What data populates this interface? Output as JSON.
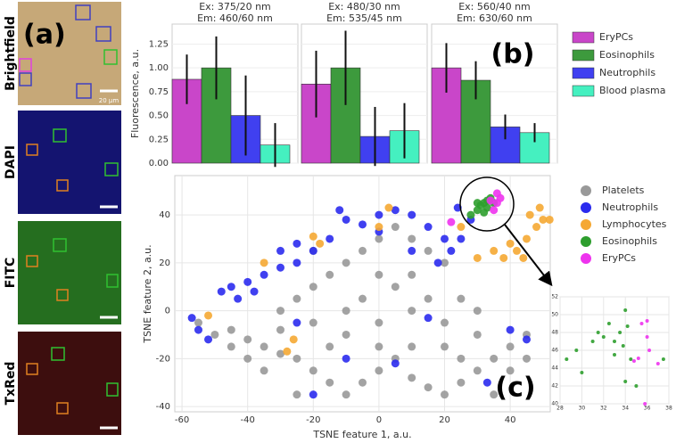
{
  "figure": {
    "panel_a": "(a)",
    "image_labels": [
      "Brightfield",
      "DAPI",
      "FITC",
      "TxRed"
    ],
    "scale_bar": "20 µm"
  },
  "chart_data": [
    {
      "type": "bar",
      "label": "(b)",
      "ylabel": "Fluorescence, a.u.",
      "ylim": [
        0,
        1.46
      ],
      "yticks": [
        {
          "value": 0,
          "label": "0.00"
        },
        {
          "value": 0.25,
          "label": "0.25"
        },
        {
          "value": 0.5,
          "label": "0.50"
        },
        {
          "value": 0.75,
          "label": "0.75"
        },
        {
          "value": 1,
          "label": "1.00"
        },
        {
          "value": 1.25,
          "label": "1.25"
        }
      ],
      "facets": [
        {
          "excitation": "Ex: 375/20 nm",
          "emission": "Em: 460/60 nm"
        },
        {
          "excitation": "Ex: 480/30 nm",
          "emission": "Em: 535/45 nm"
        },
        {
          "excitation": "Ex: 560/40 nm",
          "emission": "Em: 630/60 nm"
        }
      ],
      "series": [
        {
          "name": "EryPCs",
          "color": "#c946c9",
          "values": [
            0.88,
            0.83,
            1.0
          ],
          "errors": [
            0.26,
            0.35,
            0.26
          ]
        },
        {
          "name": "Eosinophils",
          "color": "#3d9a3d",
          "values": [
            1.0,
            1.0,
            0.87
          ],
          "errors": [
            0.33,
            0.39,
            0.2
          ]
        },
        {
          "name": "Neutrophils",
          "color": "#4040f0",
          "values": [
            0.5,
            0.28,
            0.38
          ],
          "errors": [
            0.42,
            0.31,
            0.13
          ]
        },
        {
          "name": "Blood plasma",
          "color": "#45f0c0",
          "values": [
            0.19,
            0.34,
            0.32
          ],
          "errors": [
            0.23,
            0.29,
            0.1
          ]
        }
      ]
    },
    {
      "type": "scatter",
      "label": "(c)",
      "xlabel": "TSNE feature 1, a.u.",
      "ylabel": "TSNE feature 2, a.u.",
      "xlim": [
        -62.2,
        52.2
      ],
      "ylim": [
        -42.2,
        56.4
      ],
      "xticks": [
        -60,
        -40,
        -20,
        0,
        20,
        40
      ],
      "yticks": [
        -40,
        -20,
        0,
        20,
        40
      ],
      "grid": true,
      "series": [
        {
          "name": "Platelets",
          "color": "#999999",
          "x": [
            -55,
            -50,
            -45,
            -40,
            -35,
            -30,
            -25,
            -20,
            -15,
            -10,
            -5,
            0,
            5,
            10,
            15,
            20,
            25,
            30,
            35,
            40,
            45,
            -30,
            -25,
            -20,
            -15,
            -10,
            -5,
            0,
            5,
            10,
            15,
            20,
            -20,
            -10,
            0,
            10,
            20,
            30,
            -5,
            5,
            15,
            25,
            -35,
            -40,
            -15,
            0,
            10,
            20,
            35,
            -25,
            -10,
            0,
            -20,
            10,
            25,
            40,
            -45,
            -30,
            30,
            45
          ],
          "values": [
            -5,
            -10,
            -8,
            -12,
            -15,
            -18,
            -20,
            -25,
            -30,
            -35,
            -30,
            -25,
            -20,
            -28,
            -32,
            -35,
            -30,
            -25,
            -20,
            -15,
            -10,
            0,
            5,
            10,
            15,
            20,
            25,
            30,
            35,
            30,
            25,
            20,
            -5,
            -10,
            -5,
            0,
            -5,
            -10,
            5,
            10,
            5,
            5,
            -25,
            -20,
            -15,
            -15,
            -15,
            -15,
            -35,
            -35,
            0,
            15,
            25,
            15,
            -20,
            -25,
            -15,
            -8,
            0,
            -20
          ]
        },
        {
          "name": "Neutrophils",
          "color": "#2b2bee",
          "x": [
            -57,
            -55,
            -52,
            -48,
            -45,
            -40,
            -35,
            -30,
            -25,
            -20,
            -15,
            -10,
            -5,
            0,
            5,
            10,
            15,
            20,
            22,
            25,
            28,
            24,
            -30,
            -38,
            -25,
            -20,
            -10,
            5,
            15,
            40,
            45,
            33,
            -25,
            10,
            18,
            -43,
            0,
            -12
          ],
          "values": [
            -3,
            -8,
            -12,
            8,
            10,
            12,
            15,
            18,
            20,
            25,
            30,
            38,
            36,
            40,
            42,
            40,
            35,
            30,
            25,
            30,
            38,
            43,
            25,
            8,
            -5,
            -35,
            -20,
            -22,
            -3,
            -8,
            -12,
            -30,
            28,
            25,
            20,
            5,
            33,
            42
          ]
        },
        {
          "name": "Lymphocytes",
          "color": "#f5a833",
          "x": [
            -52,
            -28,
            -35,
            -18,
            0,
            3,
            -26,
            30,
            35,
            38,
            40,
            42,
            45,
            48,
            50,
            46,
            44,
            -20,
            52,
            49,
            25
          ],
          "values": [
            -2,
            -17,
            20,
            28,
            35,
            43,
            -12,
            22,
            25,
            22,
            28,
            25,
            30,
            35,
            38,
            40,
            22,
            31,
            38,
            43,
            35
          ]
        },
        {
          "name": "Eosinophils",
          "color": "#2e9e2e",
          "x": [
            28,
            30,
            31,
            32,
            33,
            34,
            30,
            32,
            35,
            33
          ],
          "values": [
            40,
            42,
            44,
            45,
            46,
            47,
            45,
            41,
            45,
            43
          ]
        },
        {
          "name": "EryPCs",
          "color": "#ee33ee",
          "x": [
            36,
            37,
            36,
            35,
            34,
            22
          ],
          "values": [
            45,
            47,
            49,
            42,
            46,
            37
          ]
        }
      ]
    },
    {
      "type": "scatter",
      "xlim": [
        28,
        38
      ],
      "ylim": [
        40,
        52
      ],
      "xticks": [
        28,
        30,
        32,
        34,
        36,
        38
      ],
      "yticks": [
        40,
        42,
        44,
        46,
        48,
        50,
        52
      ],
      "grid": true,
      "series": [
        {
          "color": "#2e9e2e",
          "x": [
            28.6,
            29.5,
            30,
            31,
            31.5,
            32,
            32.5,
            33,
            33.5,
            34,
            33.8,
            34.2,
            34.5,
            35,
            34,
            37.5,
            33
          ],
          "values": [
            45,
            46,
            43.5,
            47,
            48,
            47.5,
            49,
            47,
            48,
            50.5,
            46.5,
            48.7,
            45,
            42,
            42.5,
            45,
            45.5
          ]
        },
        {
          "color": "#ee33ee",
          "x": [
            35.5,
            36,
            36,
            34.8,
            35.2,
            36.2,
            37,
            35.8
          ],
          "values": [
            49,
            49.3,
            47.5,
            44.8,
            45.1,
            46,
            44.5,
            40
          ]
        }
      ]
    }
  ]
}
